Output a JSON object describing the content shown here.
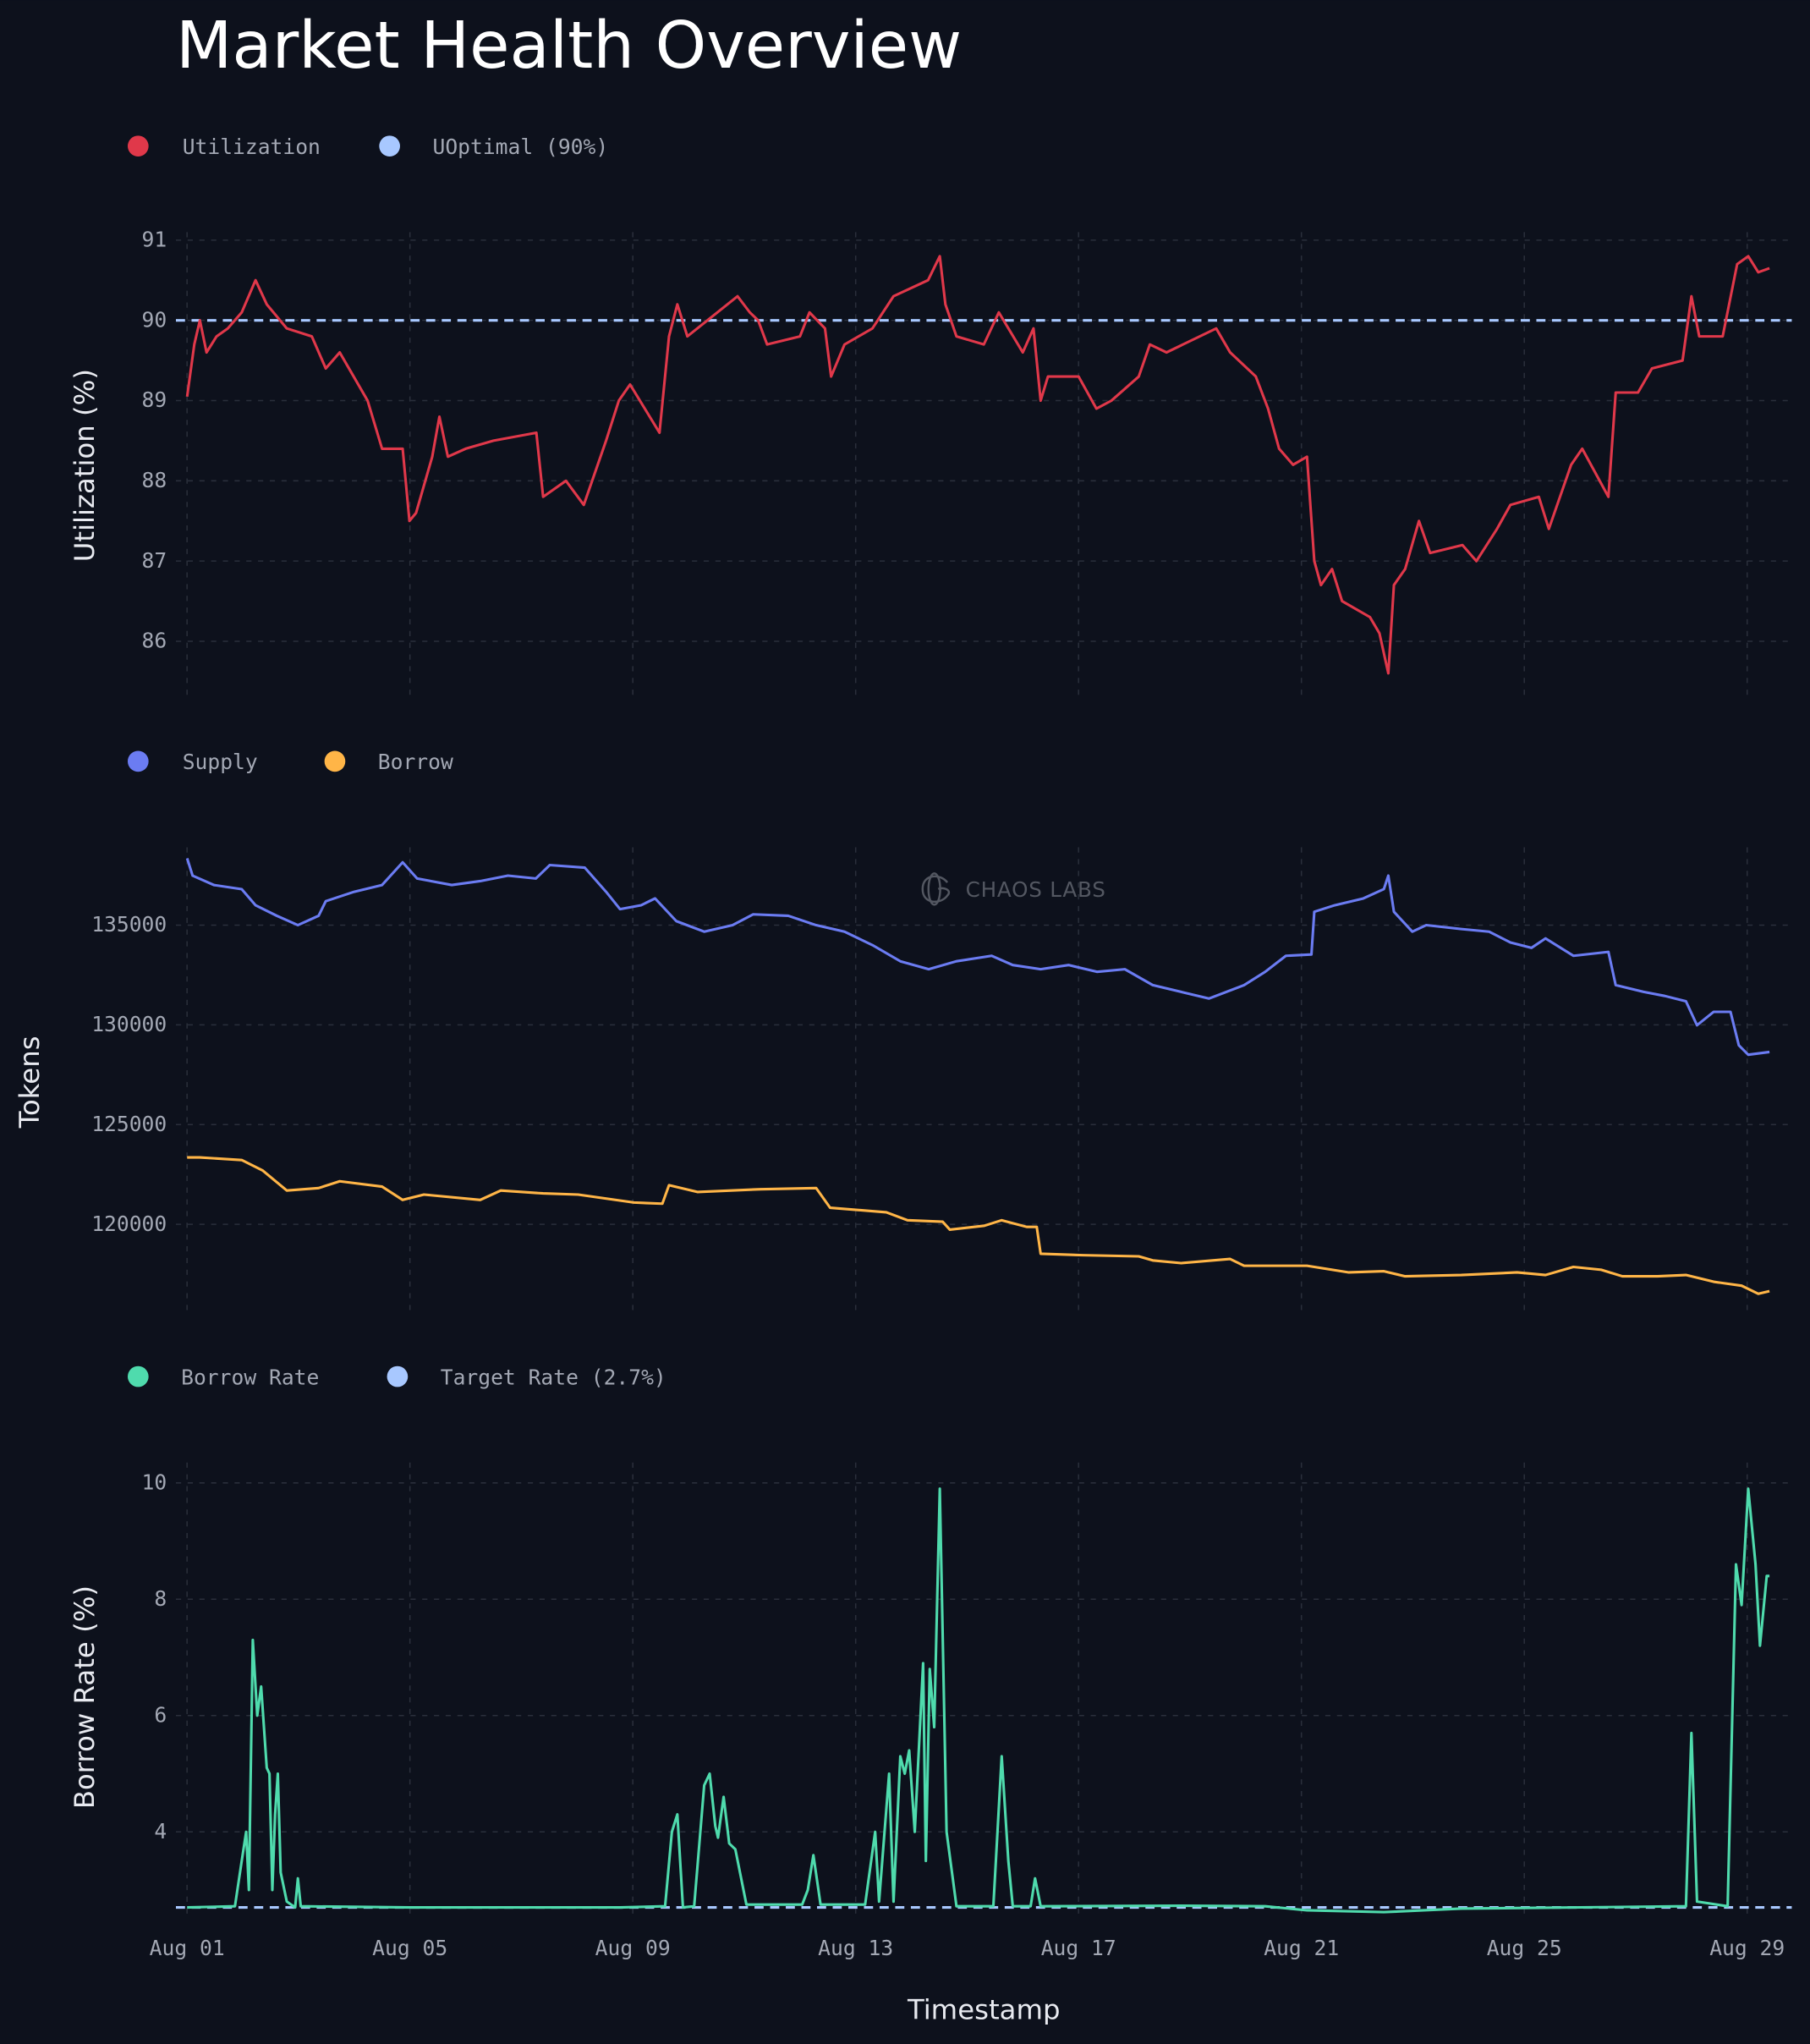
{
  "title": "Market Health Overview",
  "watermark": "CHAOS LABS",
  "x_axis": {
    "label": "Timestamp",
    "ticks": [
      0,
      4,
      8,
      12,
      16,
      20,
      24,
      28
    ],
    "tick_labels": [
      "Aug 01",
      "Aug 05",
      "Aug 09",
      "Aug 13",
      "Aug 17",
      "Aug 21",
      "Aug 25",
      "Aug 29"
    ],
    "range_days": [
      -0.2,
      28.8
    ]
  },
  "chart_data": [
    {
      "type": "line",
      "ylabel": "Utilization (%)",
      "ylim": [
        85.3,
        91.1
      ],
      "yticks": [
        86,
        87,
        88,
        89,
        90,
        91
      ],
      "ytick_labels": [
        "86",
        "87",
        "88",
        "89",
        "90",
        "91"
      ],
      "legend": [
        {
          "label": "Utilization",
          "color": "#e0384a"
        },
        {
          "label": "UOptimal (90%)",
          "color": "#a8c8ff"
        }
      ],
      "reference_line": {
        "name": "UOptimal (90%)",
        "value": 90,
        "color": "#a8c8ff"
      },
      "series": [
        {
          "name": "Utilization",
          "color": "#e0384a",
          "x_days": [
            0,
            0.13,
            0.23,
            0.35,
            0.53,
            0.73,
            0.98,
            1.23,
            1.43,
            1.79,
            2.24,
            2.49,
            2.74,
            3.24,
            3.5,
            3.87,
            3.99,
            4.11,
            4.4,
            4.53,
            4.68,
            5.0,
            5.5,
            6.27,
            6.39,
            6.8,
            7.12,
            7.52,
            7.75,
            7.95,
            8.48,
            8.65,
            8.8,
            8.98,
            9.88,
            10.1,
            10.25,
            10.41,
            11.0,
            11.17,
            11.45,
            11.56,
            11.8,
            12.3,
            12.68,
            13.3,
            13.51,
            13.61,
            13.81,
            14.3,
            14.57,
            15.0,
            15.19,
            15.32,
            15.45,
            16.0,
            16.32,
            16.59,
            17.08,
            17.28,
            17.58,
            18.47,
            18.72,
            19.18,
            19.4,
            19.6,
            19.85,
            20.1,
            20.23,
            20.35,
            20.55,
            20.73,
            21.23,
            21.4,
            21.56,
            21.66,
            21.86,
            22.11,
            22.31,
            22.89,
            23.14,
            23.51,
            23.75,
            24.26,
            24.44,
            24.84,
            25.04,
            25.51,
            25.64,
            26.04,
            26.29,
            26.84,
            27.0,
            27.14,
            27.56,
            27.82,
            28.02,
            28.2,
            28.4
          ],
          "values": [
            89.05,
            89.7,
            90.0,
            89.6,
            89.8,
            89.9,
            90.1,
            90.5,
            90.2,
            89.9,
            89.8,
            89.4,
            89.6,
            89.0,
            88.4,
            88.4,
            87.5,
            87.6,
            88.3,
            88.8,
            88.3,
            88.4,
            88.5,
            88.6,
            87.8,
            88.0,
            87.7,
            88.5,
            89.0,
            89.2,
            88.6,
            89.8,
            90.2,
            89.8,
            90.3,
            90.1,
            90.0,
            89.7,
            89.8,
            90.1,
            89.9,
            89.3,
            89.7,
            89.9,
            90.3,
            90.5,
            90.8,
            90.2,
            89.8,
            89.7,
            90.1,
            89.6,
            89.9,
            89.0,
            89.3,
            89.3,
            88.9,
            89.0,
            89.3,
            89.7,
            89.6,
            89.9,
            89.6,
            89.3,
            88.9,
            88.4,
            88.2,
            88.3,
            87.0,
            86.7,
            86.9,
            86.5,
            86.3,
            86.1,
            85.6,
            86.7,
            86.9,
            87.5,
            87.1,
            87.2,
            87.0,
            87.4,
            87.7,
            87.8,
            87.4,
            88.2,
            88.4,
            87.8,
            89.1,
            89.1,
            89.4,
            89.5,
            90.3,
            89.8,
            89.8,
            90.7,
            90.8,
            90.6,
            90.65
          ]
        }
      ]
    },
    {
      "type": "line",
      "ylabel": "Tokens",
      "ylim": [
        115700,
        138900
      ],
      "yticks": [
        120000,
        125000,
        130000,
        135000
      ],
      "ytick_labels": [
        "120000",
        "125000",
        "130000",
        "135000"
      ],
      "legend": [
        {
          "label": "Supply",
          "color": "#6b7cf2"
        },
        {
          "label": "Borrow",
          "color": "#ffb547"
        }
      ],
      "series": [
        {
          "name": "Supply",
          "color": "#6b7cf2",
          "x_days": [
            0,
            0.1,
            0.48,
            0.98,
            1.23,
            1.61,
            1.99,
            2.36,
            2.49,
            3.0,
            3.5,
            3.87,
            4.13,
            4.75,
            5.26,
            5.76,
            6.26,
            6.51,
            7.14,
            7.52,
            7.77,
            8.15,
            8.4,
            8.78,
            9.28,
            9.79,
            10.16,
            10.79,
            11.29,
            11.8,
            12.3,
            12.8,
            13.31,
            13.81,
            14.44,
            14.82,
            15.32,
            15.82,
            16.33,
            16.83,
            17.33,
            17.84,
            18.34,
            18.97,
            19.35,
            19.72,
            20.18,
            20.23,
            20.6,
            21.11,
            21.48,
            21.56,
            21.66,
            21.99,
            22.24,
            22.87,
            23.37,
            23.75,
            24.13,
            24.38,
            24.88,
            25.51,
            25.64,
            26.14,
            26.52,
            26.9,
            27.1,
            27.4,
            27.7,
            27.85,
            28.02,
            28.4
          ],
          "values": [
            138350,
            137480,
            137010,
            136800,
            136000,
            135470,
            135000,
            135470,
            136200,
            136670,
            137010,
            138150,
            137340,
            137010,
            137210,
            137480,
            137340,
            138010,
            137880,
            136670,
            135800,
            136000,
            136340,
            135200,
            134670,
            135000,
            135540,
            135470,
            135000,
            134670,
            134000,
            133190,
            132790,
            133190,
            133460,
            133000,
            132790,
            133000,
            132660,
            132790,
            131990,
            131650,
            131320,
            131990,
            132660,
            133460,
            133530,
            135670,
            136000,
            136340,
            136810,
            137480,
            135670,
            134670,
            135000,
            134800,
            134670,
            134130,
            133860,
            134330,
            133460,
            133660,
            131990,
            131650,
            131450,
            131180,
            129980,
            130650,
            130650,
            128970,
            128500,
            128640
          ]
        },
        {
          "name": "Borrow",
          "color": "#ffb547",
          "x_days": [
            0,
            0.23,
            0.98,
            1.36,
            1.79,
            2.36,
            2.74,
            3.5,
            3.87,
            4.25,
            5.26,
            5.63,
            6.39,
            7.02,
            8.02,
            8.53,
            8.65,
            9.16,
            10.29,
            11.29,
            11.54,
            12.55,
            12.93,
            13.56,
            13.69,
            14.31,
            14.62,
            15.07,
            15.25,
            15.32,
            16.08,
            17.08,
            17.33,
            17.84,
            18.72,
            18.97,
            20.1,
            20.85,
            21.48,
            21.86,
            22.87,
            23.87,
            24.38,
            24.88,
            25.38,
            25.76,
            26.39,
            26.9,
            27.4,
            27.9,
            28.2,
            28.4
          ],
          "values": [
            123350,
            123350,
            123220,
            122690,
            121690,
            121820,
            122160,
            121890,
            121220,
            121490,
            121220,
            121690,
            121550,
            121490,
            121090,
            121030,
            121960,
            121620,
            121760,
            121820,
            120830,
            120600,
            120200,
            120130,
            119730,
            119930,
            120200,
            119870,
            119870,
            118520,
            118450,
            118390,
            118190,
            118050,
            118260,
            117920,
            117920,
            117590,
            117650,
            117390,
            117460,
            117590,
            117460,
            117860,
            117720,
            117390,
            117390,
            117460,
            117120,
            116920,
            116520,
            116650
          ]
        }
      ]
    },
    {
      "type": "line",
      "ylabel": "Borrow Rate (%)",
      "ylim": [
        2.55,
        10.35
      ],
      "yticks": [
        4,
        6,
        8,
        10
      ],
      "ytick_labels": [
        "4",
        "6",
        "8",
        "10"
      ],
      "legend": [
        {
          "label": "Borrow Rate",
          "color": "#4fdbad"
        },
        {
          "label": "Target Rate (2.7%)",
          "color": "#a8c8ff"
        }
      ],
      "reference_line": {
        "name": "Target Rate (2.7%)",
        "value": 2.7,
        "color": "#a8c8ff"
      },
      "series": [
        {
          "name": "Borrow Rate",
          "color": "#4fdbad",
          "x_days": [
            0,
            0.86,
            0.98,
            1.06,
            1.11,
            1.18,
            1.26,
            1.33,
            1.43,
            1.48,
            1.53,
            1.58,
            1.63,
            1.68,
            1.79,
            1.94,
            1.99,
            2.04,
            4.0,
            7.77,
            8.58,
            8.7,
            8.8,
            8.9,
            9.1,
            9.28,
            9.38,
            9.48,
            9.53,
            9.63,
            9.73,
            9.84,
            10.04,
            11.04,
            11.14,
            11.24,
            11.37,
            12.17,
            12.35,
            12.42,
            12.6,
            12.68,
            12.8,
            12.88,
            12.96,
            13.06,
            13.21,
            13.26,
            13.33,
            13.41,
            13.51,
            13.63,
            13.81,
            14.47,
            14.62,
            14.74,
            14.82,
            15.14,
            15.22,
            15.32,
            17.84,
            19.35,
            20.1,
            21.48,
            22.87,
            26.9,
            27.0,
            27.1,
            27.65,
            27.8,
            27.9,
            28.02,
            28.15,
            28.23,
            28.35,
            28.4
          ],
          "values": [
            2.7,
            2.72,
            3.5,
            4.0,
            3.0,
            7.3,
            6.0,
            6.5,
            5.1,
            5.0,
            3.0,
            4.3,
            5.0,
            3.3,
            2.8,
            2.7,
            3.2,
            2.72,
            2.7,
            2.7,
            2.72,
            4.0,
            4.3,
            2.7,
            2.72,
            4.8,
            5.0,
            4.1,
            3.9,
            4.6,
            3.8,
            3.7,
            2.75,
            2.75,
            3.0,
            3.6,
            2.75,
            2.75,
            4.0,
            2.8,
            5.0,
            2.8,
            5.3,
            5.0,
            5.4,
            4.0,
            6.9,
            3.5,
            6.8,
            5.8,
            9.9,
            4.0,
            2.72,
            2.72,
            5.3,
            3.5,
            2.72,
            2.72,
            3.2,
            2.72,
            2.73,
            2.72,
            2.65,
            2.62,
            2.68,
            2.72,
            5.7,
            2.8,
            2.72,
            8.6,
            7.9,
            9.9,
            8.6,
            7.2,
            8.4,
            8.4
          ]
        }
      ]
    }
  ]
}
